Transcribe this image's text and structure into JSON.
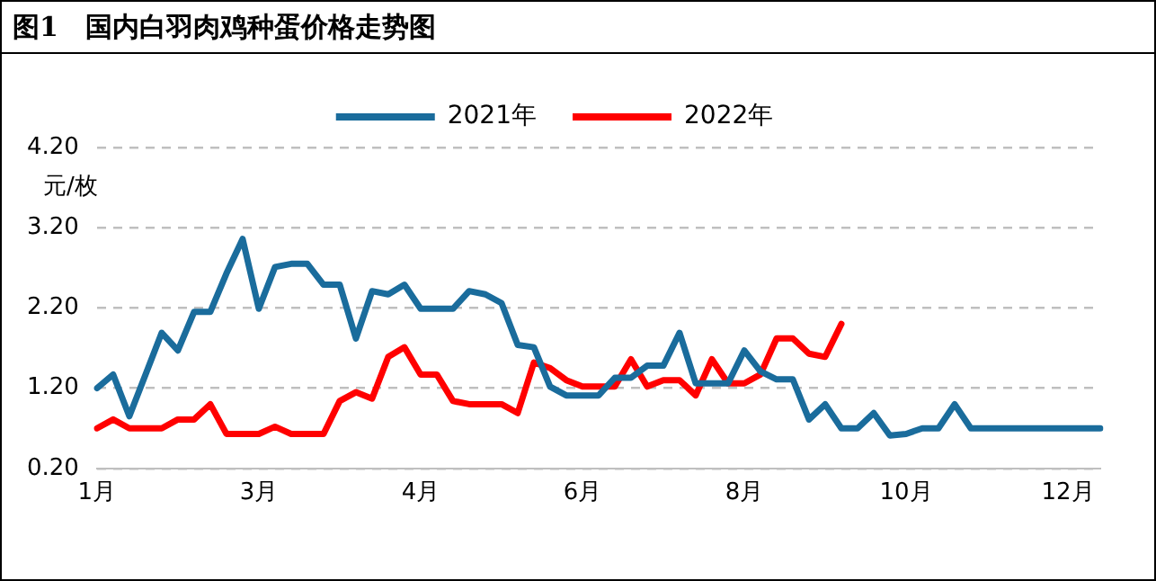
{
  "chart_data": {
    "type": "line",
    "title": "图1　国内白羽肉鸡种蛋价格走势图",
    "ylabel": "元/枚",
    "categories": [
      "1月",
      null,
      null,
      null,
      null,
      null,
      null,
      null,
      null,
      null,
      "3月",
      null,
      null,
      null,
      null,
      null,
      null,
      null,
      null,
      null,
      "4月",
      null,
      null,
      null,
      null,
      null,
      null,
      null,
      null,
      null,
      "6月",
      null,
      null,
      null,
      null,
      null,
      null,
      null,
      null,
      null,
      "8月",
      null,
      null,
      null,
      null,
      null,
      null,
      null,
      null,
      null,
      "10月",
      null,
      null,
      null,
      null,
      null,
      null,
      null,
      null,
      null,
      "12月",
      null,
      null
    ],
    "series": [
      {
        "name": "2021年",
        "color": "#1a6c9c",
        "values": [
          1.2,
          1.37,
          0.85,
          1.37,
          1.89,
          1.67,
          2.15,
          2.15,
          2.63,
          3.06,
          2.19,
          2.71,
          2.75,
          2.75,
          2.49,
          2.49,
          1.82,
          2.41,
          2.37,
          2.49,
          2.19,
          2.19,
          2.19,
          2.41,
          2.37,
          2.26,
          1.74,
          1.71,
          1.22,
          1.11,
          1.11,
          1.11,
          1.33,
          1.33,
          1.48,
          1.48,
          1.89,
          1.26,
          1.26,
          1.26,
          1.67,
          1.41,
          1.31,
          1.31,
          0.81,
          1.0,
          0.7,
          0.7,
          0.89,
          0.61,
          0.63,
          0.7,
          0.7,
          1.0,
          0.7,
          0.7,
          0.7,
          0.7,
          0.7,
          0.7,
          0.7,
          0.7,
          0.7
        ]
      },
      {
        "name": "2022年",
        "color": "#ff0000",
        "values": [
          0.7,
          0.81,
          0.7,
          0.7,
          0.7,
          0.81,
          0.81,
          1.0,
          0.63,
          0.63,
          0.63,
          0.72,
          0.63,
          0.63,
          0.63,
          1.04,
          1.15,
          1.07,
          1.59,
          1.71,
          1.37,
          1.37,
          1.04,
          1.0,
          1.0,
          1.0,
          0.89,
          1.52,
          1.45,
          1.3,
          1.22,
          1.22,
          1.22,
          1.56,
          1.22,
          1.3,
          1.3,
          1.11,
          1.56,
          1.26,
          1.26,
          1.37,
          1.82,
          1.82,
          1.63,
          1.59,
          2.0,
          null,
          null,
          null,
          null,
          null,
          null,
          null,
          null,
          null,
          null,
          null,
          null,
          null,
          null,
          null,
          null
        ]
      }
    ],
    "ylim": [
      0.2,
      4.2
    ],
    "yticks": [
      {
        "value": 0.2,
        "label": "0.20"
      },
      {
        "value": 1.2,
        "label": "1.20"
      },
      {
        "value": 2.2,
        "label": "2.20"
      },
      {
        "value": 3.2,
        "label": "3.20"
      },
      {
        "value": 4.2,
        "label": "4.20"
      }
    ],
    "grid": "y",
    "legend": "top",
    "marker": "none",
    "line_style": "solid"
  }
}
